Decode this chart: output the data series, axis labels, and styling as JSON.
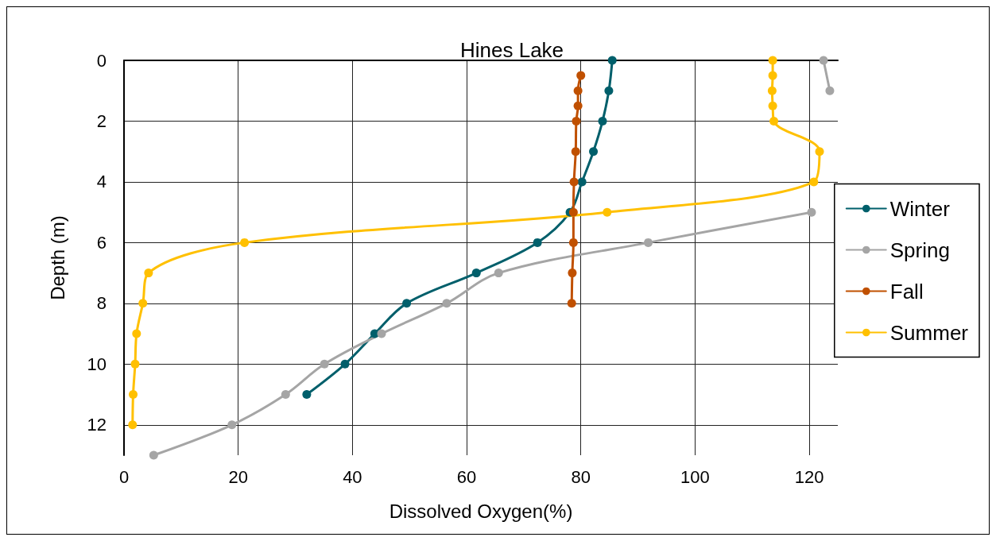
{
  "chart_data": {
    "type": "line",
    "title": "Hines Lake",
    "xlabel": "Dissolved Oxygen(%)",
    "ylabel": "Depth (m)",
    "xlim": [
      0,
      125
    ],
    "xticks": [
      0,
      20,
      40,
      60,
      80,
      100,
      120
    ],
    "ylim": [
      13,
      0
    ],
    "yticks": [
      0,
      2,
      4,
      6,
      8,
      10,
      12
    ],
    "grid": true,
    "legend": "right",
    "marker": "circle",
    "line_style": "solid",
    "series": [
      {
        "name": "Winter",
        "color": "#005f6b",
        "x": [
          85.5,
          84.9,
          83.8,
          82.2,
          80.2,
          78.1,
          72.4,
          61.7,
          49.5,
          43.9,
          38.7,
          32.0
        ],
        "values": [
          0,
          1,
          2,
          3,
          4,
          5,
          6,
          7,
          8,
          9,
          10,
          11
        ]
      },
      {
        "name": "Spring",
        "color": "#a5a5a5",
        "x": [
          122.5,
          123.6,
          null,
          null,
          null,
          120.4,
          91.8,
          65.6,
          56.5,
          45.1,
          35.1,
          28.3,
          18.9,
          5.2
        ],
        "values": [
          0,
          1,
          null,
          null,
          null,
          5,
          6,
          7,
          8,
          9,
          10,
          11,
          12,
          13
        ]
      },
      {
        "name": "Fall",
        "color": "#c05000",
        "x": [
          80.0,
          79.5,
          79.5,
          79.2,
          79.1,
          78.8,
          78.7,
          78.7,
          78.5,
          78.4
        ],
        "values": [
          0.5,
          1,
          1.5,
          2,
          3,
          4,
          5,
          6,
          7,
          8
        ]
      },
      {
        "name": "Summer",
        "color": "#ffc000",
        "x": [
          113.6,
          113.6,
          113.5,
          113.6,
          113.8,
          121.8,
          120.8,
          84.6,
          21.1,
          4.3,
          3.3,
          2.2,
          1.95,
          1.6,
          1.5
        ],
        "values": [
          0,
          0.5,
          1,
          1.5,
          2,
          3,
          4,
          5,
          6,
          7,
          8,
          9,
          10,
          11,
          12
        ]
      }
    ]
  }
}
